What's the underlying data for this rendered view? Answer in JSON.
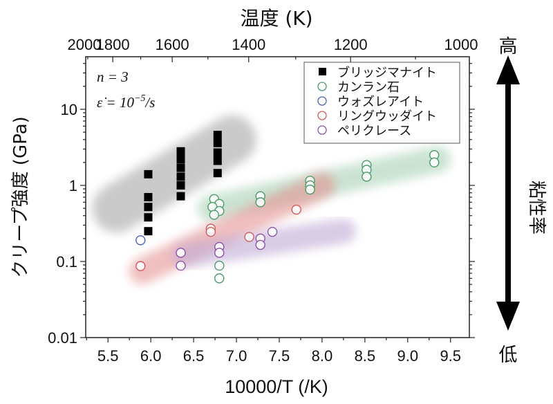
{
  "chart_data": {
    "type": "scatter",
    "title": "",
    "top_axis_label": "温度 (K)",
    "top_axis_ticks": [
      {
        "label": "2000",
        "value": 5.0
      },
      {
        "label": "1800",
        "value": 5.556
      },
      {
        "label": "1600",
        "value": 6.25
      },
      {
        "label": "1400",
        "value": 7.143
      },
      {
        "label": "1200",
        "value": 8.333
      },
      {
        "label": "1000",
        "value": 10.0
      }
    ],
    "xlabel": "10000/T (/K)",
    "ylabel": "クリープ強度 (GPa)",
    "xlim": [
      5.24,
      9.72
    ],
    "ylim": [
      0.01,
      49
    ],
    "yscale": "log",
    "x_ticks": [
      "5.5",
      "6.0",
      "6.5",
      "7.0",
      "7.5",
      "8.0",
      "8.5",
      "9.0",
      "9.5"
    ],
    "y_ticks": [
      "0.01",
      "0.1",
      "1",
      "10"
    ],
    "annotations": {
      "line1": "n = 3",
      "line2_prefix": "ε̇ = 10",
      "line2_exp": "−5",
      "line2_suffix": "/s"
    },
    "right_arrow": {
      "top_label": "高",
      "bottom_label": "低",
      "middle_label": "粘性率"
    },
    "legend_position": "upper right",
    "series": [
      {
        "name": "ブリッジマナイト",
        "marker": "square-filled",
        "color": "#000000",
        "points": [
          [
            5.97,
            1.4
          ],
          [
            5.97,
            0.7
          ],
          [
            5.97,
            0.52
          ],
          [
            5.97,
            0.38
          ],
          [
            5.97,
            0.25
          ],
          [
            6.35,
            2.8
          ],
          [
            6.35,
            2.2
          ],
          [
            6.35,
            1.7
          ],
          [
            6.35,
            1.3
          ],
          [
            6.35,
            1.0
          ],
          [
            6.35,
            0.72
          ],
          [
            6.78,
            4.6
          ],
          [
            6.78,
            3.6
          ],
          [
            6.78,
            2.7
          ],
          [
            6.78,
            2.1
          ],
          [
            6.78,
            1.45
          ]
        ]
      },
      {
        "name": "カンラン石",
        "marker": "circle-open",
        "color": "#4a9a6a",
        "points": [
          [
            6.74,
            0.66
          ],
          [
            6.8,
            0.57
          ],
          [
            6.72,
            0.52
          ],
          [
            6.8,
            0.46
          ],
          [
            6.74,
            0.41
          ],
          [
            7.28,
            0.72
          ],
          [
            7.28,
            0.6
          ],
          [
            7.86,
            1.15
          ],
          [
            7.86,
            1.0
          ],
          [
            7.86,
            0.88
          ],
          [
            8.52,
            1.85
          ],
          [
            8.52,
            1.6
          ],
          [
            8.52,
            1.3
          ],
          [
            9.31,
            2.5
          ],
          [
            9.31,
            2.0
          ],
          [
            6.8,
            0.088
          ],
          [
            6.8,
            0.06
          ]
        ]
      },
      {
        "name": "ウォズレアイト",
        "marker": "circle-open",
        "color": "#4a62b8",
        "points": [
          [
            5.88,
            0.19
          ]
        ]
      },
      {
        "name": "リングウッダイト",
        "marker": "circle-open",
        "color": "#d05a5a",
        "points": [
          [
            5.88,
            0.087
          ],
          [
            6.7,
            0.27
          ],
          [
            6.7,
            0.245
          ],
          [
            7.15,
            0.21
          ],
          [
            7.7,
            0.48
          ]
        ]
      },
      {
        "name": "ペリクレース",
        "marker": "circle-open",
        "color": "#8a52a8",
        "points": [
          [
            6.35,
            0.13
          ],
          [
            6.35,
            0.088
          ],
          [
            6.8,
            0.155
          ],
          [
            6.8,
            0.13
          ],
          [
            7.28,
            0.2
          ],
          [
            7.28,
            0.165
          ],
          [
            7.42,
            0.245
          ]
        ]
      }
    ],
    "bands": [
      {
        "name": "bridgmanite-band",
        "color": "#b4b4b4",
        "opacity": 0.7,
        "from": [
          5.6,
          0.5
        ],
        "to": [
          6.95,
          4.0
        ],
        "thickness": 70
      },
      {
        "name": "olivine-band",
        "color": "#a8d0b6",
        "opacity": 0.6,
        "from": [
          6.7,
          0.5
        ],
        "to": [
          9.35,
          2.2
        ],
        "thickness": 38
      },
      {
        "name": "ringwoodite-band",
        "color": "#e48a8a",
        "opacity": 0.55,
        "from": [
          5.9,
          0.075
        ],
        "to": [
          8.0,
          1.0
        ],
        "thickness": 38
      },
      {
        "name": "wadsleyite-glow",
        "color": "#5a78d0",
        "opacity": 0.55,
        "from": [
          5.88,
          0.19
        ],
        "to": [
          5.88,
          0.19
        ],
        "thickness": 26
      },
      {
        "name": "periclase-band",
        "color": "#c0a8d4",
        "opacity": 0.6,
        "from": [
          6.4,
          0.12
        ],
        "to": [
          8.25,
          0.25
        ],
        "thickness": 36
      }
    ]
  }
}
